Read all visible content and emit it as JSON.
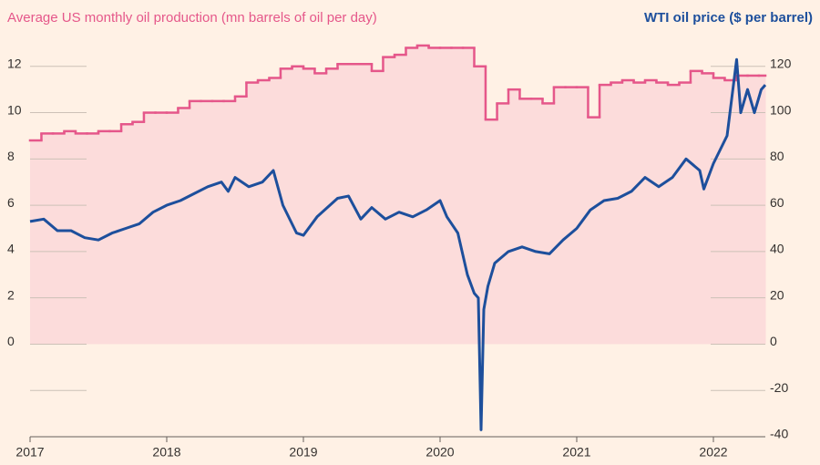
{
  "chart_data": {
    "type": "step-area-line",
    "title": "Average US monthly oil production (mn barrels of oil per day)",
    "title2": "WTI oil price ($ per barrel)",
    "xlim": [
      2017,
      2022.38
    ],
    "xticks": [
      2017,
      2018,
      2019,
      2020,
      2021,
      2022
    ],
    "ylim": [
      -4,
      14
    ],
    "yticks": [
      0,
      2,
      4,
      6,
      8,
      10,
      12
    ],
    "y2lim": [
      -40,
      140
    ],
    "y2ticks": [
      -40,
      -20,
      0,
      20,
      40,
      60,
      80,
      100,
      120
    ],
    "grid": true,
    "series": [
      {
        "name": "Average US monthly oil production",
        "color": "#e5578a",
        "fill": "#fcdcdb",
        "axis": "y",
        "x": [
          2017,
          2017.083,
          2017.167,
          2017.25,
          2017.333,
          2017.417,
          2017.5,
          2017.583,
          2017.667,
          2017.75,
          2017.833,
          2017.917,
          2018,
          2018.083,
          2018.167,
          2018.25,
          2018.333,
          2018.417,
          2018.5,
          2018.583,
          2018.667,
          2018.75,
          2018.833,
          2018.917,
          2019,
          2019.083,
          2019.167,
          2019.25,
          2019.333,
          2019.417,
          2019.5,
          2019.583,
          2019.667,
          2019.75,
          2019.833,
          2019.917,
          2020,
          2020.083,
          2020.167,
          2020.25,
          2020.333,
          2020.417,
          2020.5,
          2020.583,
          2020.667,
          2020.75,
          2020.833,
          2020.917,
          2021,
          2021.083,
          2021.167,
          2021.25,
          2021.333,
          2021.417,
          2021.5,
          2021.583,
          2021.667,
          2021.75,
          2021.833,
          2021.917,
          2022,
          2022.083,
          2022.167,
          2022.25,
          2022.333
        ],
        "values": [
          8.8,
          9.1,
          9.1,
          9.2,
          9.1,
          9.1,
          9.2,
          9.2,
          9.5,
          9.6,
          10.0,
          10.0,
          10.0,
          10.2,
          10.5,
          10.5,
          10.5,
          10.5,
          10.7,
          11.3,
          11.4,
          11.5,
          11.9,
          12.0,
          11.9,
          11.7,
          11.9,
          12.1,
          12.1,
          12.1,
          11.8,
          12.4,
          12.5,
          12.8,
          12.9,
          12.8,
          12.8,
          12.8,
          12.8,
          12.0,
          9.7,
          10.4,
          11.0,
          10.6,
          10.6,
          10.4,
          11.1,
          11.1,
          11.1,
          9.8,
          11.2,
          11.3,
          11.4,
          11.3,
          11.4,
          11.3,
          11.2,
          11.3,
          11.8,
          11.7,
          11.5,
          11.4,
          11.6,
          11.6,
          11.6
        ]
      },
      {
        "name": "WTI oil price",
        "color": "#1d4f9c",
        "axis": "y2",
        "x": [
          2017.0,
          2017.1,
          2017.2,
          2017.3,
          2017.4,
          2017.5,
          2017.6,
          2017.7,
          2017.8,
          2017.9,
          2018.0,
          2018.1,
          2018.2,
          2018.3,
          2018.4,
          2018.45,
          2018.5,
          2018.6,
          2018.7,
          2018.78,
          2018.85,
          2018.95,
          2019.0,
          2019.1,
          2019.25,
          2019.33,
          2019.42,
          2019.5,
          2019.6,
          2019.7,
          2019.8,
          2019.9,
          2020.0,
          2020.05,
          2020.13,
          2020.2,
          2020.25,
          2020.28,
          2020.3,
          2020.32,
          2020.35,
          2020.4,
          2020.5,
          2020.6,
          2020.7,
          2020.8,
          2020.9,
          2021.0,
          2021.1,
          2021.2,
          2021.3,
          2021.4,
          2021.5,
          2021.6,
          2021.7,
          2021.8,
          2021.9,
          2021.93,
          2022.0,
          2022.1,
          2022.17,
          2022.2,
          2022.25,
          2022.3,
          2022.35,
          2022.38
        ],
        "values": [
          53,
          54,
          49,
          49,
          46,
          45,
          48,
          50,
          52,
          57,
          60,
          62,
          65,
          68,
          70,
          66,
          72,
          68,
          70,
          75,
          60,
          48,
          47,
          55,
          63,
          64,
          54,
          59,
          54,
          57,
          55,
          58,
          62,
          55,
          48,
          30,
          22,
          20,
          -37,
          15,
          25,
          35,
          40,
          42,
          40,
          39,
          45,
          50,
          58,
          62,
          63,
          66,
          72,
          68,
          72,
          80,
          75,
          67,
          78,
          90,
          123,
          100,
          110,
          100,
          110,
          112
        ]
      }
    ]
  }
}
